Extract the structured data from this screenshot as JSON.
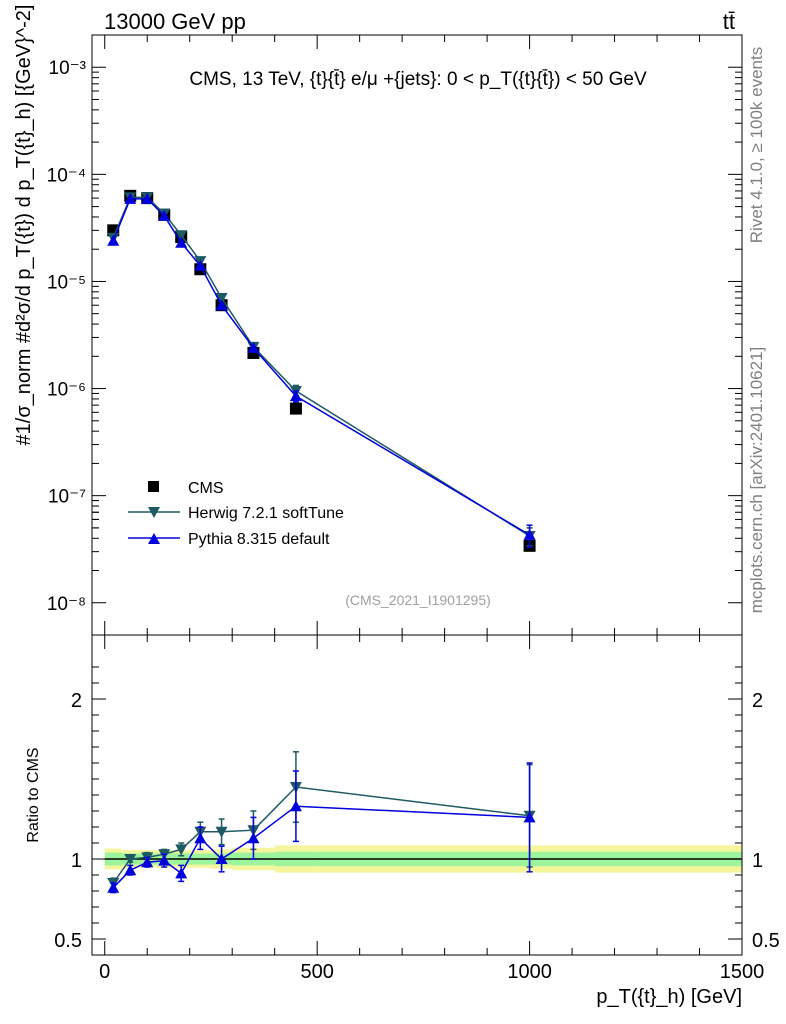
{
  "header": {
    "energy": "13000 GeV pp",
    "process": "tt̄",
    "rivet": "Rivet 4.1.0, ≥ 100k events",
    "site": "mcplots.cern.ch [arXiv:2401.10621]",
    "analysis": "(CMS_2021_I1901295)"
  },
  "colors": {
    "cms": "#000000",
    "herwig": "#1e5a64",
    "pythia": "#0000dd",
    "band_inner": "#9cf59c",
    "band_outer": "#f5f59c"
  },
  "chart_data": [
    {
      "type": "scatter",
      "title": "CMS, 13 TeV, {t}{t̄} e/μ +{jets}: 0 <  p_T({t}{t̄}) < 50 GeV",
      "ylabel": "#1/σ_norm #d²σ/d p_T({t}) d p_T({t}_h) [{GeV}^-2]",
      "yscale": "log",
      "ylim": [
        5e-09,
        0.002
      ],
      "xlim": [
        -30,
        1500
      ],
      "yticks": [
        1e-08,
        1e-07,
        1e-06,
        1e-05,
        0.0001,
        0.001
      ],
      "ytick_labels": [
        "10⁻⁸",
        "10⁻⁷",
        "10⁻⁶",
        "10⁻⁵",
        "10⁻⁴",
        "10⁻³"
      ],
      "legend": [
        "CMS",
        "Herwig 7.2.1 softTune",
        "Pythia 8.315 default"
      ],
      "legend_position": "lower-left",
      "series": [
        {
          "name": "CMS",
          "marker": "square",
          "x": [
            20,
            60,
            100,
            140,
            180,
            225,
            275,
            350,
            450,
            1000
          ],
          "y": [
            3e-05,
            6.3e-05,
            6e-05,
            4.2e-05,
            2.6e-05,
            1.3e-05,
            6e-06,
            2.15e-06,
            6.5e-07,
            3.4e-08
          ]
        },
        {
          "name": "Herwig 7.2.1 softTune",
          "marker": "triangle-down",
          "x": [
            20,
            60,
            100,
            140,
            180,
            225,
            275,
            350,
            450,
            1000
          ],
          "y": [
            2.55e-05,
            6.1e-05,
            6.1e-05,
            4.3e-05,
            2.7e-05,
            1.55e-05,
            7e-06,
            2.45e-06,
            9.5e-07,
            4.2e-08
          ],
          "yerr": [
            0,
            0,
            0,
            0,
            0,
            0,
            0,
            0,
            1.2e-07,
            8e-09
          ]
        },
        {
          "name": "Pythia 8.315 default",
          "marker": "triangle-up",
          "x": [
            20,
            60,
            100,
            140,
            180,
            225,
            275,
            350,
            450,
            1000
          ],
          "y": [
            2.4e-05,
            5.9e-05,
            5.9e-05,
            4.1e-05,
            2.3e-05,
            1.4e-05,
            6e-06,
            2.4e-06,
            8.5e-07,
            4.3e-08
          ],
          "yerr": [
            0,
            0,
            0,
            0,
            0,
            0,
            0,
            0,
            1e-07,
            1e-08
          ]
        }
      ]
    },
    {
      "type": "scatter",
      "title": "",
      "xlabel": "p_T({t}_h) [GeV]",
      "ylabel": "Ratio to CMS",
      "ylim": [
        0.4,
        2.4
      ],
      "xlim": [
        -30,
        1500
      ],
      "xticks": [
        0,
        500,
        1000,
        1500
      ],
      "yticks": [
        0.5,
        1,
        2
      ],
      "bands": {
        "x_edges": [
          0,
          40,
          80,
          120,
          160,
          200,
          250,
          300,
          400,
          500,
          1500
        ],
        "inner_half": [
          0.04,
          0.035,
          0.035,
          0.035,
          0.035,
          0.035,
          0.035,
          0.04,
          0.045,
          0.045
        ],
        "outer_half": [
          0.065,
          0.055,
          0.055,
          0.055,
          0.055,
          0.055,
          0.06,
          0.07,
          0.085,
          0.085
        ]
      },
      "series": [
        {
          "name": "Herwig 7.2.1 softTune",
          "marker": "triangle-down",
          "x": [
            20,
            60,
            100,
            140,
            180,
            225,
            275,
            350,
            450,
            1000
          ],
          "y": [
            0.85,
            1.0,
            1.01,
            1.03,
            1.06,
            1.17,
            1.17,
            1.18,
            1.45,
            1.27
          ],
          "yerr": [
            0.03,
            0.02,
            0.03,
            0.03,
            0.04,
            0.06,
            0.08,
            0.12,
            0.22,
            0.32
          ]
        },
        {
          "name": "Pythia 8.315 default",
          "marker": "triangle-up",
          "x": [
            20,
            60,
            100,
            140,
            180,
            225,
            275,
            350,
            450,
            1000
          ],
          "y": [
            0.82,
            0.93,
            0.98,
            0.99,
            0.91,
            1.13,
            1.0,
            1.13,
            1.33,
            1.26
          ],
          "yerr": [
            0.03,
            0.03,
            0.03,
            0.04,
            0.05,
            0.07,
            0.08,
            0.13,
            0.22,
            0.34
          ]
        }
      ]
    }
  ]
}
